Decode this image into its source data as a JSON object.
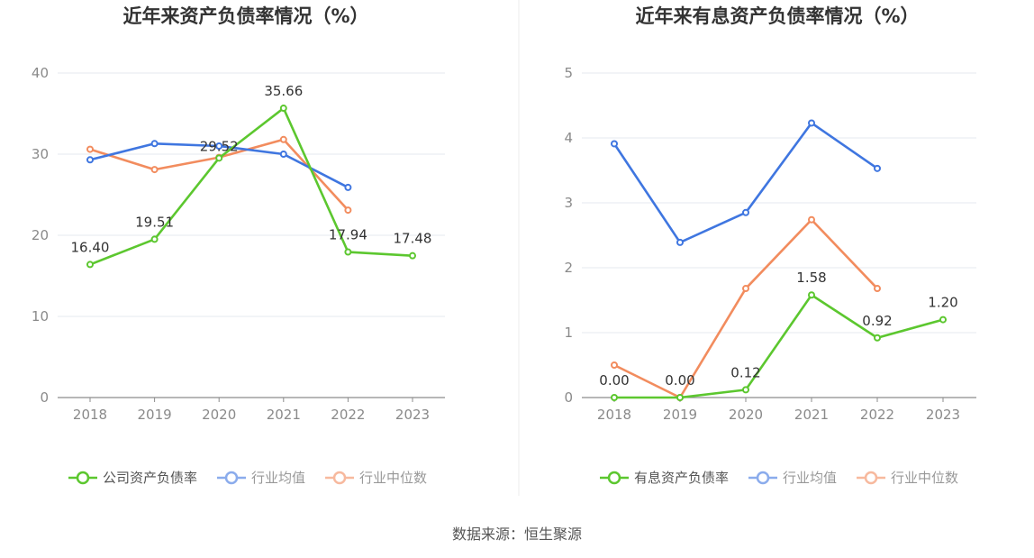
{
  "source": "数据来源：恒生聚源",
  "chart_data": [
    {
      "type": "line",
      "title": "近年来资产负债率情况（%）",
      "x": [
        "2018",
        "2019",
        "2020",
        "2021",
        "2022",
        "2023"
      ],
      "ylim": [
        0,
        40
      ],
      "yticks": [
        "0",
        "10",
        "20",
        "30",
        "40"
      ],
      "grid": true,
      "legend_position": "bottom",
      "series": [
        {
          "name": "公司资产负债率",
          "color": "#5cc72f",
          "values": [
            16.4,
            19.51,
            29.52,
            35.66,
            17.94,
            17.48
          ],
          "labels": [
            "16.40",
            "19.51",
            "29.52",
            "35.66",
            "17.94",
            "17.48"
          ]
        },
        {
          "name": "行业均值",
          "color": "#3f76e0",
          "values": [
            29.3,
            31.3,
            31.0,
            30.0,
            25.9,
            null
          ],
          "labels": []
        },
        {
          "name": "行业中位数",
          "color": "#f28c5e",
          "values": [
            30.6,
            28.1,
            29.6,
            31.8,
            23.1,
            null
          ],
          "labels": []
        }
      ]
    },
    {
      "type": "line",
      "title": "近年来有息资产负债率情况（%）",
      "x": [
        "2018",
        "2019",
        "2020",
        "2021",
        "2022",
        "2023"
      ],
      "ylim": [
        0,
        5
      ],
      "yticks": [
        "0",
        "1",
        "2",
        "3",
        "4",
        "5"
      ],
      "grid": true,
      "legend_position": "bottom",
      "series": [
        {
          "name": "有息资产负债率",
          "color": "#5cc72f",
          "values": [
            0.0,
            0.0,
            0.12,
            1.58,
            0.92,
            1.2
          ],
          "labels": [
            "0.00",
            "0.00",
            "0.12",
            "1.58",
            "0.92",
            "1.20"
          ]
        },
        {
          "name": "行业均值",
          "color": "#3f76e0",
          "values": [
            3.91,
            2.39,
            2.85,
            4.23,
            3.53,
            null
          ],
          "labels": []
        },
        {
          "name": "行业中位数",
          "color": "#f28c5e",
          "values": [
            0.5,
            0.0,
            1.68,
            2.74,
            1.68,
            null
          ],
          "labels": []
        }
      ]
    }
  ]
}
